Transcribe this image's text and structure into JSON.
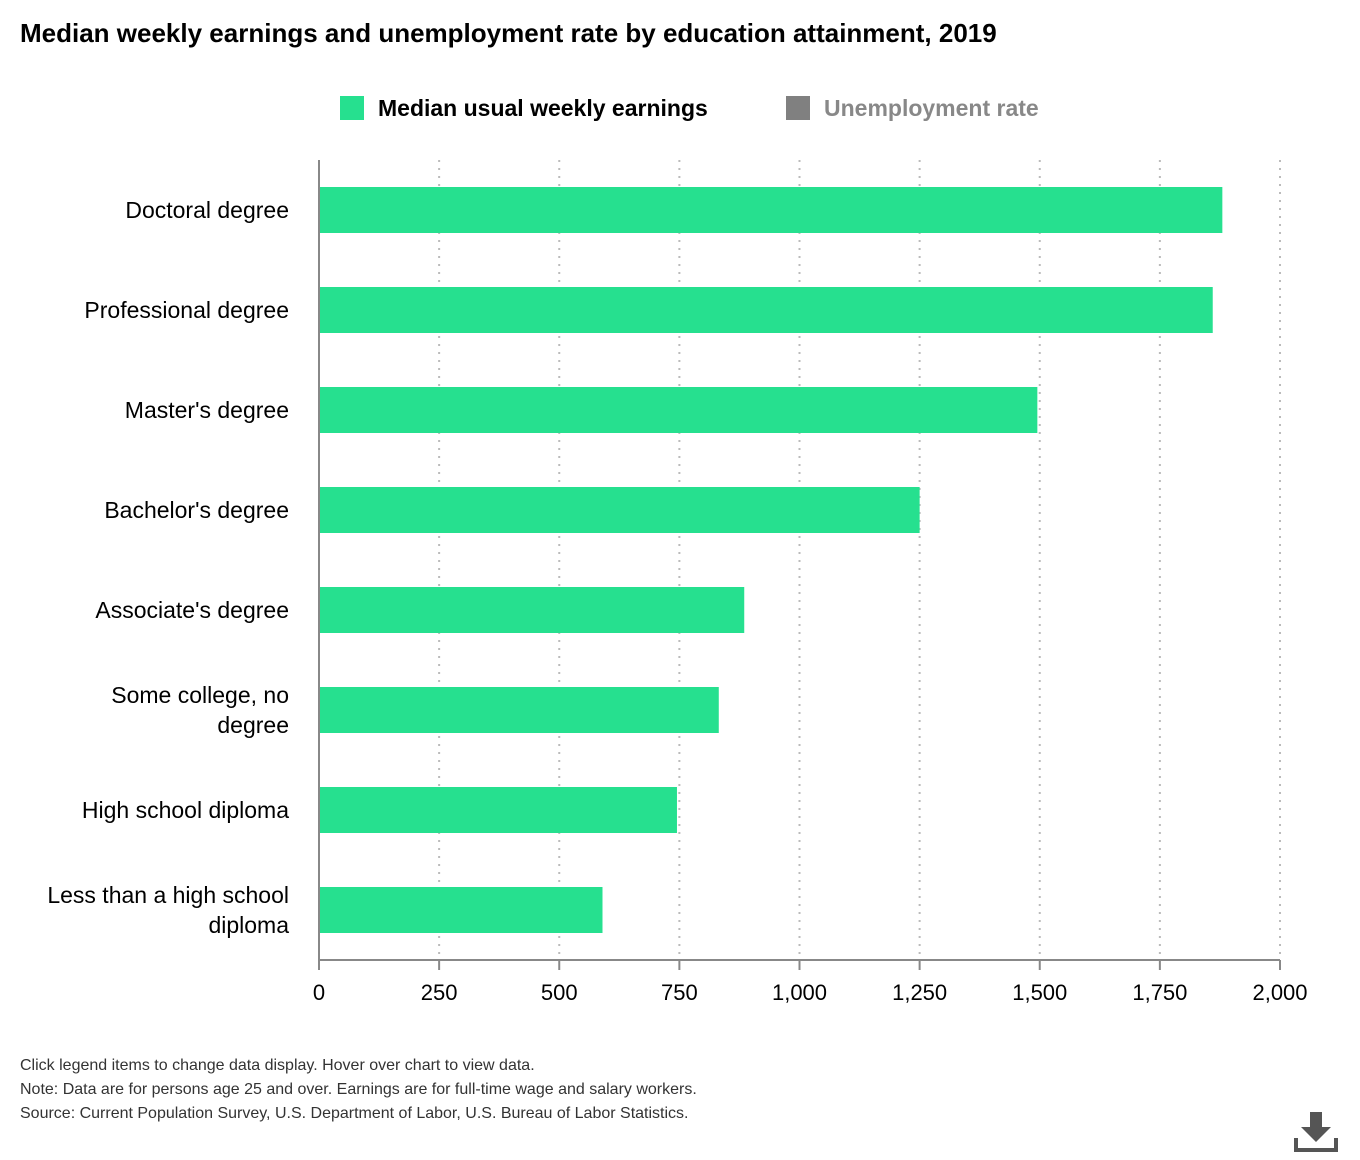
{
  "chart_data": {
    "type": "bar",
    "orientation": "horizontal",
    "title": "Median weekly earnings and unemployment rate by education attainment, 2019",
    "categories": [
      "Doctoral degree",
      "Professional degree",
      "Master's degree",
      "Bachelor's degree",
      "Associate's degree",
      "Some college, no degree",
      "High school diploma",
      "Less than a high school diploma"
    ],
    "category_lines": [
      [
        "Doctoral degree"
      ],
      [
        "Professional degree"
      ],
      [
        "Master's degree"
      ],
      [
        "Bachelor's degree"
      ],
      [
        "Associate's degree"
      ],
      [
        "Some college, no",
        "degree"
      ],
      [
        "High school diploma"
      ],
      [
        "Less than a high school",
        "diploma"
      ]
    ],
    "series": [
      {
        "name": "Median usual weekly earnings",
        "color": "#26e08f",
        "values": [
          1880,
          1860,
          1495,
          1250,
          885,
          832,
          745,
          590
        ],
        "visible": true
      },
      {
        "name": "Unemployment rate",
        "color": "#808080",
        "visible": false
      }
    ],
    "xlim": [
      0,
      2000
    ],
    "xticks": [
      0,
      250,
      500,
      750,
      1000,
      1250,
      1500,
      1750,
      2000
    ],
    "xtick_labels": [
      "0",
      "250",
      "500",
      "750",
      "1,000",
      "1,250",
      "1,500",
      "1,750",
      "2,000"
    ],
    "xlabel": "",
    "ylabel": "",
    "grid": true,
    "legend_position": "top-center",
    "colors": {
      "earnings": "#26e08f",
      "unemployment": "#808080",
      "unemployment_label": "#888888",
      "axis": "#888888",
      "grid": "#bbbbbb"
    }
  },
  "notes": [
    "Click legend items to change data display. Hover over chart to view data.",
    "Note: Data are for persons age 25 and over. Earnings are for full-time wage and salary workers.",
    "Source: Current Population Survey, U.S. Department of Labor, U.S. Bureau of Labor Statistics."
  ],
  "download_icon": "download-icon"
}
